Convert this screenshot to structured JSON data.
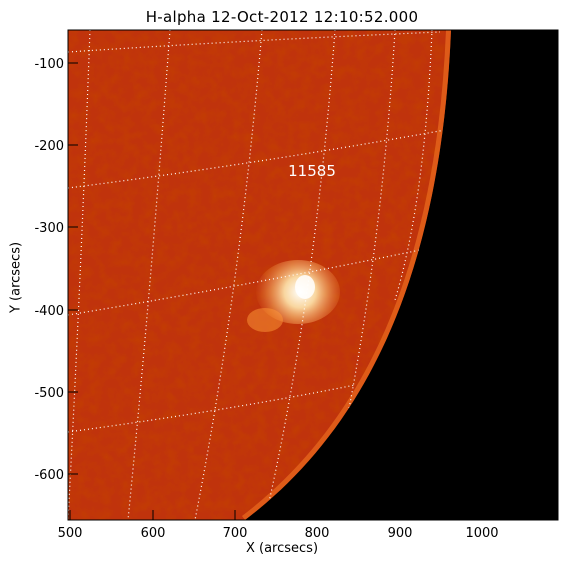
{
  "title": "H-alpha 12-Oct-2012 12:10:52.000",
  "xlabel": "X (arcsecs)",
  "ylabel": "Y (arcsecs)",
  "xticks": [
    "500",
    "600",
    "700",
    "800",
    "900",
    "1000"
  ],
  "yticks": [
    "-100",
    "-200",
    "-300",
    "-400",
    "-500",
    "-600"
  ],
  "annotation": "11585",
  "colors": {
    "disk": "#b82a08",
    "limb_bright": "#f26a1a",
    "background": "#000000",
    "grid": "#ffffff"
  }
}
